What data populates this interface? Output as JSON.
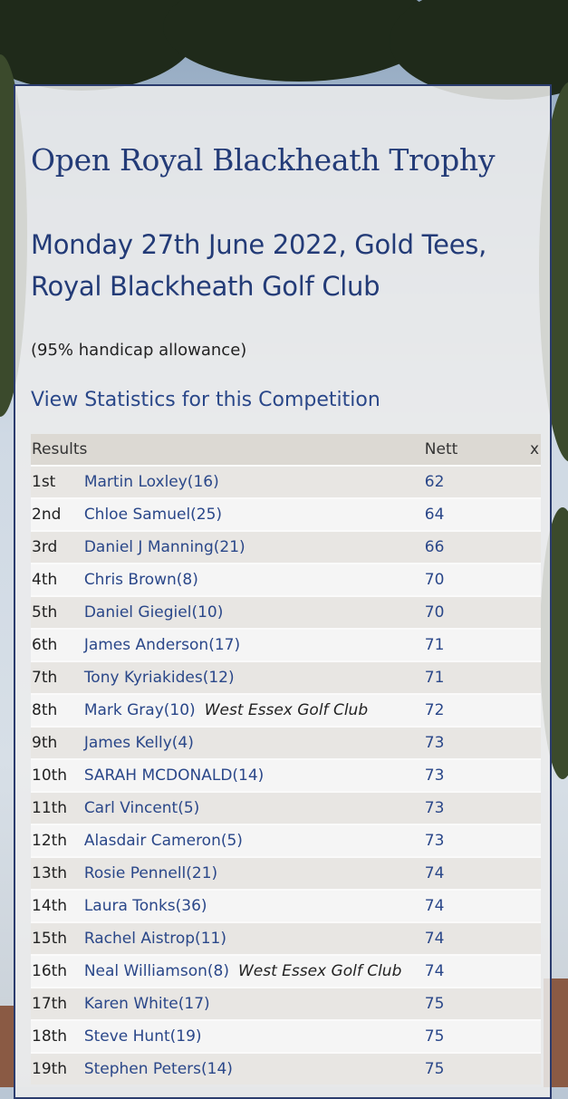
{
  "header": {
    "title": "Open Royal Blackheath Trophy",
    "subtitle": "Monday 27th June 2022, Gold Tees, Royal Blackheath Golf Club",
    "handicap_note": "(95% handicap allowance)",
    "stats_link": "View Statistics for this Competition"
  },
  "table": {
    "headers": {
      "results": "Results",
      "nett": "Nett",
      "close": "x"
    },
    "rows": [
      {
        "pos": "1st",
        "name": "Martin Loxley(16)",
        "club": "",
        "nett": "62"
      },
      {
        "pos": "2nd",
        "name": "Chloe Samuel(25)",
        "club": "",
        "nett": "64"
      },
      {
        "pos": "3rd",
        "name": "Daniel J Manning(21)",
        "club": "",
        "nett": "66"
      },
      {
        "pos": "4th",
        "name": "Chris Brown(8)",
        "club": "",
        "nett": "70"
      },
      {
        "pos": "5th",
        "name": "Daniel Giegiel(10)",
        "club": "",
        "nett": "70"
      },
      {
        "pos": "6th",
        "name": "James Anderson(17)",
        "club": "",
        "nett": "71"
      },
      {
        "pos": "7th",
        "name": "Tony Kyriakides(12)",
        "club": "",
        "nett": "71"
      },
      {
        "pos": "8th",
        "name": "Mark Gray(10)",
        "club": "West Essex Golf Club",
        "nett": "72"
      },
      {
        "pos": "9th",
        "name": "James Kelly(4)",
        "club": "",
        "nett": "73"
      },
      {
        "pos": "10th",
        "name": "SARAH MCDONALD(14)",
        "club": "",
        "nett": "73"
      },
      {
        "pos": "11th",
        "name": "Carl Vincent(5)",
        "club": "",
        "nett": "73"
      },
      {
        "pos": "12th",
        "name": "Alasdair Cameron(5)",
        "club": "",
        "nett": "73"
      },
      {
        "pos": "13th",
        "name": "Rosie Pennell(21)",
        "club": "",
        "nett": "74"
      },
      {
        "pos": "14th",
        "name": "Laura Tonks(36)",
        "club": "",
        "nett": "74"
      },
      {
        "pos": "15th",
        "name": "Rachel Aistrop(11)",
        "club": "",
        "nett": "74"
      },
      {
        "pos": "16th",
        "name": "Neal Williamson(8)",
        "club": "West Essex Golf Club",
        "nett": "74"
      },
      {
        "pos": "17th",
        "name": "Karen White(17)",
        "club": "",
        "nett": "75"
      },
      {
        "pos": "18th",
        "name": "Steve Hunt(19)",
        "club": "",
        "nett": "75"
      },
      {
        "pos": "19th",
        "name": "Stephen Peters(14)",
        "club": "",
        "nett": "75"
      }
    ]
  },
  "colors": {
    "heading": "#233b77",
    "link": "#2a4789",
    "panel_border": "#2b3c6e",
    "header_row": "#dcd9d3"
  }
}
